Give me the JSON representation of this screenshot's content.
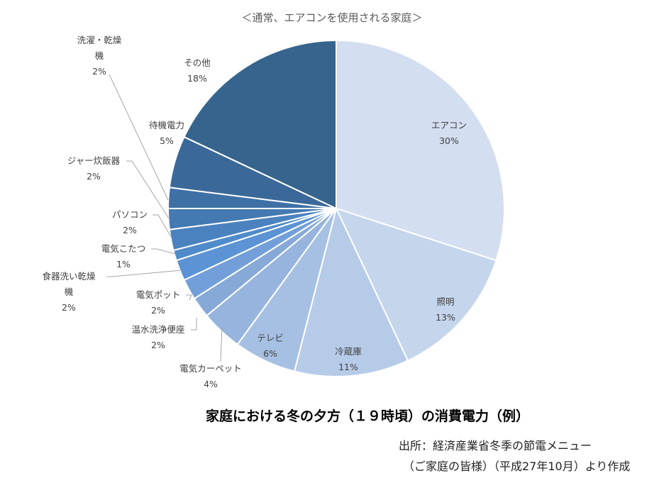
{
  "chart_data": {
    "type": "pie",
    "subtitle": "＜通常、エアコンを使用される家庭＞",
    "title": "家庭における冬の夕方（１９時頃）の消費電力（例）",
    "slices": [
      {
        "label": "エアコン",
        "value_label": "30%",
        "value": 30,
        "color": "#d3def0"
      },
      {
        "label": "照明",
        "value_label": "13%",
        "value": 13,
        "color": "#c4d5ec"
      },
      {
        "label": "冷蔵庫",
        "value_label": "11%",
        "value": 11,
        "color": "#b6cbe8"
      },
      {
        "label": "テレビ",
        "value_label": "6%",
        "value": 6,
        "color": "#a6c0e3"
      },
      {
        "label": "電気カーペット",
        "value_label": "4%",
        "value": 4,
        "color": "#96b4dd"
      },
      {
        "label": "温水洗浄便座",
        "value_label": "2%",
        "value": 2,
        "color": "#86a9d8"
      },
      {
        "label": "電気ポット",
        "value_label": "2%",
        "value": 2,
        "color": "#729fda"
      },
      {
        "label": "食器洗い乾燥機",
        "value_label": "2%",
        "value": 2,
        "color": "#5b93d5"
      },
      {
        "label": "電気こたつ",
        "value_label": "1%",
        "value": 1,
        "color": "#4f8bcb"
      },
      {
        "label": "パソコン",
        "value_label": "2%",
        "value": 2,
        "color": "#4a82bf"
      },
      {
        "label": "ジャー炊飯器",
        "value_label": "2%",
        "value": 2,
        "color": "#4479b2"
      },
      {
        "label": "洗濯・乾燥機",
        "value_label": "2%",
        "value": 2,
        "color": "#3e70a6"
      },
      {
        "label": "待機電力",
        "value_label": "5%",
        "value": 5,
        "color": "#3a6999"
      },
      {
        "label": "その他",
        "value_label": "18%",
        "value": 18,
        "color": "#36648d"
      }
    ]
  },
  "source": {
    "line1": "出所：経済産業省冬季の節電メニュー",
    "line2": "（ご家庭の皆様）（平成27年10月）より作成"
  }
}
